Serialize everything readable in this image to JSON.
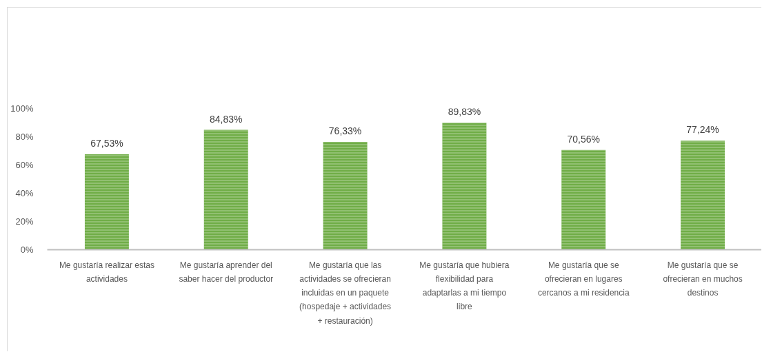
{
  "chart_data": {
    "type": "bar",
    "categories": [
      "Me gustaría realizar estas\nactividades",
      "Me gustaría aprender del\nsaber hacer del productor",
      "Me gustaría que las\nactividades se ofrecieran\nincluidas en un paquete\n(hospedaje + actividades\n+ restauración)",
      "Me gustaría que hubiera\nflexibilidad para\nadaptarlas a mi tiempo\nlibre",
      "Me gustaría que se\nofrecieran en lugares\ncercanos a mi residencia",
      "Me gustaría que se\nofrecieran en muchos\ndestinos"
    ],
    "values": [
      67.53,
      84.83,
      76.33,
      89.83,
      70.56,
      77.24
    ],
    "value_labels": [
      "67,53%",
      "84,83%",
      "76,33%",
      "89,83%",
      "70,56%",
      "77,24%"
    ],
    "color": "#70ad47",
    "ylim": [
      0,
      100
    ],
    "yticks": [
      {
        "value": 0,
        "label": "0%"
      },
      {
        "value": 20,
        "label": "20%"
      },
      {
        "value": 40,
        "label": "40%"
      },
      {
        "value": 60,
        "label": "60%"
      },
      {
        "value": 80,
        "label": "80%"
      },
      {
        "value": 100,
        "label": "100%"
      }
    ]
  }
}
